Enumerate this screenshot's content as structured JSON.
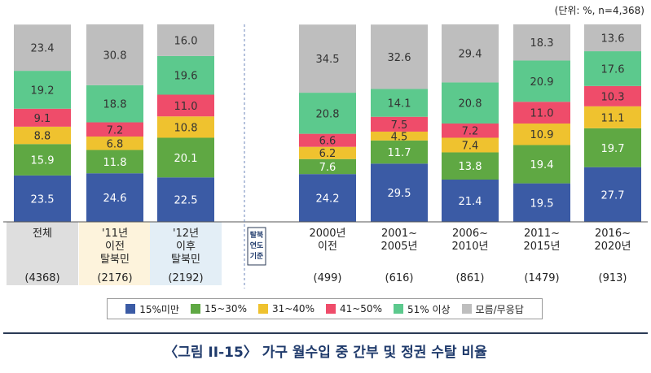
{
  "unit_note": "(단위: %, n=4,368)",
  "figure_title": "〈그림 II-15〉 가구 월수입 중 간부 및 정권 수탈 비율",
  "group_label": "탈북\n연도\n기준",
  "colors": {
    "15%미만": "#3b5ba5",
    "15~30%": "#5fa843",
    "31~40%": "#efc22f",
    "41~50%": "#ef4c6a",
    "51% 이상": "#5cc98d",
    "모름/무응답": "#bebebe"
  },
  "legend": [
    "15%미만",
    "15~30%",
    "31~40%",
    "41~50%",
    "51% 이상",
    "모름/무응답"
  ],
  "chart_data": {
    "type": "bar",
    "stacked": true,
    "ylim": [
      0,
      100
    ],
    "categories": [
      {
        "label": "전체",
        "n": "(4368)",
        "bg": "#dedede"
      },
      {
        "label": "'11년\n이전\n탈북민",
        "n": "(2176)",
        "bg": "#fdf3dc"
      },
      {
        "label": "'12년\n이후\n탈북민",
        "n": "(2192)",
        "bg": "#e3eef6"
      },
      {
        "label": "2000년\n이전",
        "n": "(499)",
        "bg": ""
      },
      {
        "label": "2001~\n2005년",
        "n": "(616)",
        "bg": ""
      },
      {
        "label": "2006~\n2010년",
        "n": "(861)",
        "bg": ""
      },
      {
        "label": "2011~\n2015년",
        "n": "(1479)",
        "bg": ""
      },
      {
        "label": "2016~\n2020년",
        "n": "(913)",
        "bg": ""
      }
    ],
    "series": [
      {
        "name": "15%미만",
        "values": [
          23.5,
          24.6,
          22.5,
          24.2,
          29.5,
          21.4,
          19.5,
          27.7
        ]
      },
      {
        "name": "15~30%",
        "values": [
          15.9,
          11.8,
          20.1,
          7.6,
          11.7,
          13.8,
          19.4,
          19.7
        ]
      },
      {
        "name": "31~40%",
        "values": [
          8.8,
          6.8,
          10.8,
          6.2,
          4.5,
          7.4,
          10.9,
          11.1
        ]
      },
      {
        "name": "41~50%",
        "values": [
          9.1,
          7.2,
          11.0,
          6.6,
          7.5,
          7.2,
          11.0,
          10.3
        ]
      },
      {
        "name": "51% 이상",
        "values": [
          19.2,
          18.8,
          19.6,
          20.8,
          14.1,
          20.8,
          20.9,
          17.6
        ]
      },
      {
        "name": "모름/무응답",
        "values": [
          23.4,
          30.8,
          16.0,
          34.5,
          32.6,
          29.4,
          18.3,
          13.6
        ]
      }
    ]
  }
}
